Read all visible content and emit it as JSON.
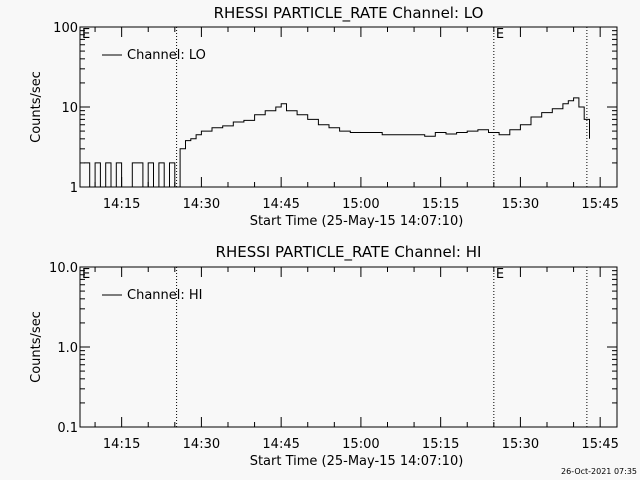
{
  "footer": {
    "timestamp": "26-Oct-2021 07:35"
  },
  "chart_data": [
    {
      "type": "line",
      "title": "RHESSI PARTICLE_RATE Channel: LO",
      "xlabel": "Start Time (25-May-15 14:07:10)",
      "ylabel": "Counts/sec",
      "yscale": "log",
      "ylim": [
        1,
        100
      ],
      "ytick_labels": [
        "1",
        "10",
        "100"
      ],
      "yticks": [
        1,
        10,
        100
      ],
      "xlim": [
        "14:07:10",
        "15:48:10"
      ],
      "xticks": [
        "14:15",
        "14:30",
        "14:45",
        "15:00",
        "15:15",
        "15:30",
        "15:45"
      ],
      "legend": {
        "placement": "top-left",
        "entries": [
          "Channel: LO"
        ]
      },
      "markers": [
        {
          "time": "14:25:20",
          "label": ""
        },
        {
          "time": "15:25:00",
          "label": "E"
        },
        {
          "time": "15:42:30",
          "label": ""
        }
      ],
      "corner_label": "E",
      "series": [
        {
          "name": "Channel: LO",
          "color": "#000000",
          "x": [
            "14:08:00",
            "14:09:00",
            "14:10:00",
            "14:11:00",
            "14:12:00",
            "14:13:00",
            "14:14:00",
            "14:15:00",
            "14:16:00",
            "14:17:00",
            "14:18:00",
            "14:19:00",
            "14:20:00",
            "14:21:00",
            "14:22:00",
            "14:23:00",
            "14:24:00",
            "14:25:00",
            "14:26:00",
            "14:27:00",
            "14:28:00",
            "14:29:00",
            "14:30:00",
            "14:32:00",
            "14:34:00",
            "14:36:00",
            "14:38:00",
            "14:40:00",
            "14:42:00",
            "14:44:00",
            "14:45:00",
            "14:46:00",
            "14:48:00",
            "14:50:00",
            "14:52:00",
            "14:54:00",
            "14:56:00",
            "14:58:00",
            "15:00:00",
            "15:02:00",
            "15:04:00",
            "15:06:00",
            "15:08:00",
            "15:10:00",
            "15:12:00",
            "15:14:00",
            "15:16:00",
            "15:18:00",
            "15:20:00",
            "15:22:00",
            "15:24:00",
            "15:26:00",
            "15:28:00",
            "15:30:00",
            "15:32:00",
            "15:34:00",
            "15:36:00",
            "15:38:00",
            "15:39:00",
            "15:40:00",
            "15:41:00",
            "15:42:00",
            "15:43:00"
          ],
          "y": [
            2,
            1,
            2,
            1,
            2,
            1,
            2,
            1,
            1,
            2,
            2,
            1,
            2,
            1,
            2,
            1,
            2,
            1,
            3,
            3.8,
            4,
            4.5,
            5,
            5.5,
            5.8,
            6.5,
            6.8,
            8,
            9,
            10,
            11,
            9,
            8,
            7,
            6,
            5.5,
            5,
            4.8,
            4.8,
            4.8,
            4.5,
            4.5,
            4.5,
            4.5,
            4.3,
            4.8,
            4.6,
            4.8,
            5,
            5.2,
            4.8,
            4.5,
            5.2,
            6,
            7.5,
            8.5,
            9.5,
            11,
            12,
            13,
            10,
            7,
            4
          ]
        }
      ]
    },
    {
      "type": "line",
      "title": "RHESSI PARTICLE_RATE Channel: HI",
      "xlabel": "Start Time (25-May-15 14:07:10)",
      "ylabel": "Counts/sec",
      "yscale": "log",
      "ylim": [
        0.1,
        10
      ],
      "ytick_labels": [
        "0.1",
        "1.0",
        "10.0"
      ],
      "yticks": [
        0.1,
        1,
        10
      ],
      "xlim": [
        "14:07:10",
        "15:48:10"
      ],
      "xticks": [
        "14:15",
        "14:30",
        "14:45",
        "15:00",
        "15:15",
        "15:30",
        "15:45"
      ],
      "legend": {
        "placement": "top-left",
        "entries": [
          "Channel: HI"
        ]
      },
      "markers": [
        {
          "time": "14:25:20",
          "label": ""
        },
        {
          "time": "15:25:00",
          "label": "E"
        },
        {
          "time": "15:42:30",
          "label": ""
        }
      ],
      "corner_label": "E",
      "series": [
        {
          "name": "Channel: HI",
          "color": "#000000",
          "x": [],
          "y": []
        }
      ]
    }
  ]
}
